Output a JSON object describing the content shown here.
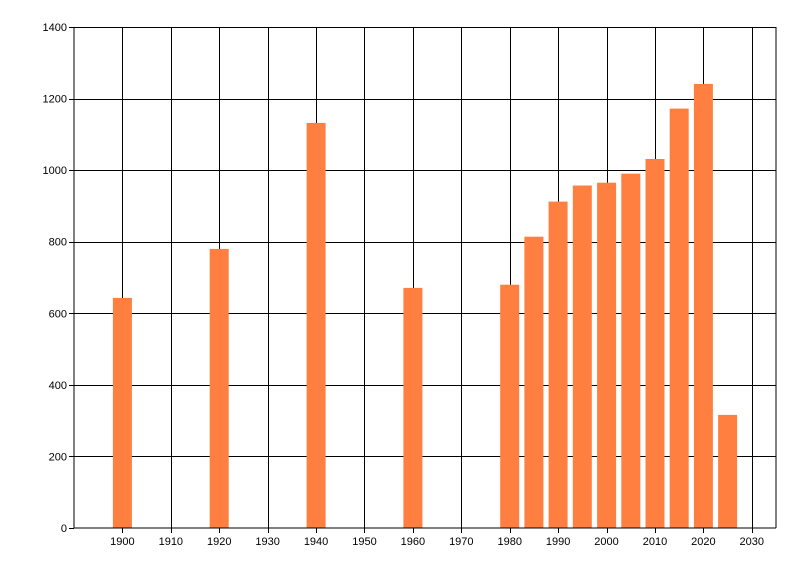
{
  "chart_data": {
    "type": "bar",
    "x": [
      1900,
      1920,
      1940,
      1960,
      1980,
      1985,
      1990,
      1995,
      2000,
      2005,
      2010,
      2015,
      2020,
      2025
    ],
    "values": [
      643,
      780,
      1132,
      671,
      680,
      814,
      912,
      957,
      965,
      990,
      1031,
      1172,
      1241,
      316
    ],
    "xlim": [
      1890,
      2035
    ],
    "ylim": [
      0,
      1400
    ],
    "x_ticks": [
      1900,
      1910,
      1920,
      1930,
      1940,
      1950,
      1960,
      1970,
      1980,
      1990,
      2000,
      2010,
      2020,
      2030
    ],
    "y_ticks": [
      0,
      200,
      400,
      600,
      800,
      1000,
      1200,
      1400
    ],
    "bar_color": "#ff7f40",
    "grid": true,
    "title": "",
    "xlabel": "",
    "ylabel": ""
  }
}
